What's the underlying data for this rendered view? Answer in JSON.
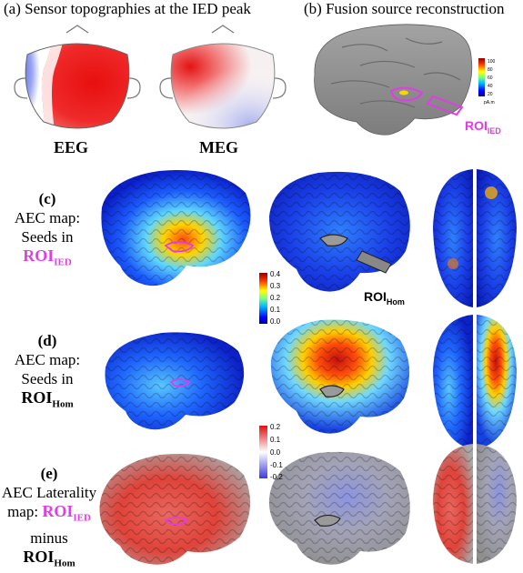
{
  "panel_a": {
    "title": "(a) Sensor topographies at the IED peak",
    "eeg_label": "EEG",
    "meg_label": "MEG"
  },
  "panel_b": {
    "title": "(b) Fusion source reconstruction",
    "roi_main": "ROI",
    "roi_sub": "IED",
    "colorbar_ticks": [
      "100",
      "80",
      "60",
      "40",
      "20"
    ],
    "colorbar_unit": "pA.m"
  },
  "panel_c": {
    "label_line1": "(c)",
    "label_line2": "AEC map:",
    "label_line3": "Seeds in",
    "roi_main": "ROI",
    "roi_sub": "IED",
    "hom_main": "ROI",
    "hom_sub": "Hom",
    "colorbar_ticks": [
      "0.4",
      "0.3",
      "0.2",
      "0.1",
      "0.0"
    ]
  },
  "panel_d": {
    "label_line1": "(d)",
    "label_line2": "AEC map:",
    "label_line3": "Seeds in",
    "roi_main": "ROI",
    "roi_sub": "Hom"
  },
  "panel_e": {
    "label_line1": "(e)",
    "label_line2": "AEC Laterality",
    "label_line3a": "map: ",
    "roi_ied_main": "ROI",
    "roi_ied_sub": "IED",
    "label_line4": "minus",
    "roi_hom_main": "ROI",
    "roi_hom_sub": "Hom",
    "colorbar_ticks": [
      "0.2",
      "0.1",
      "0.0",
      "-0.1",
      "-0.2"
    ]
  },
  "colors": {
    "accent_magenta": "#e33be6",
    "brain_gray": "#8c8c8c",
    "jet_high": "#b30000",
    "jet_low": "#00008f"
  }
}
